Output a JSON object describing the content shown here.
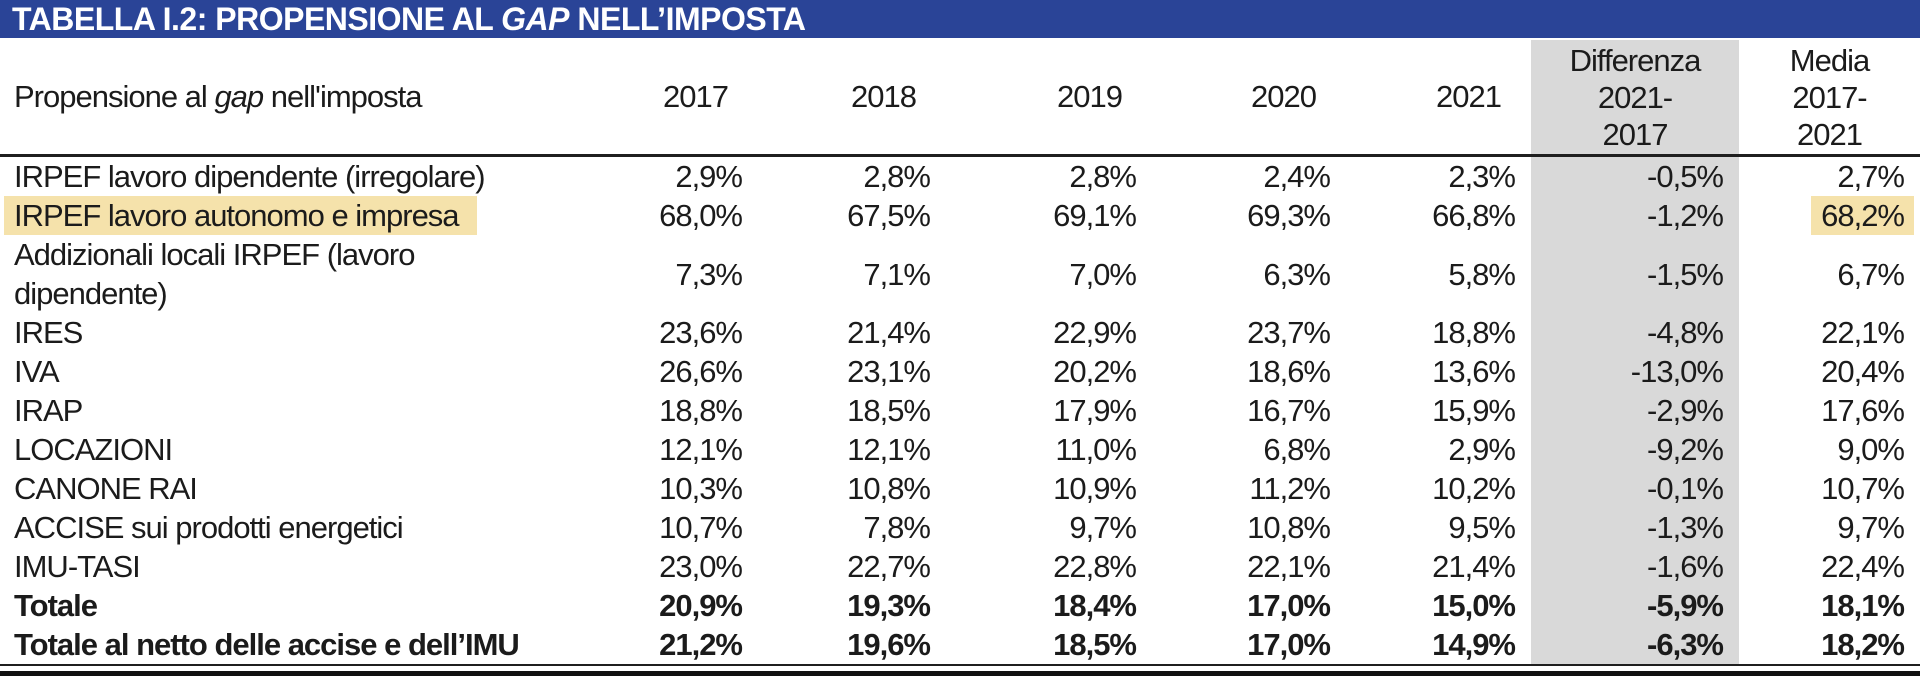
{
  "title": {
    "prefix": "TABELLA I.2: PROPENSIONE AL ",
    "italic": "GAP",
    "suffix": " NELL’IMPOSTA"
  },
  "table": {
    "header": {
      "label": {
        "prefix": "Propensione al ",
        "italic": "gap",
        "suffix": " nell'imposta"
      },
      "years": [
        "2017",
        "2018",
        "2019",
        "2020",
        "2021"
      ],
      "diff_lines": [
        "Differenza",
        "2021-",
        "2017"
      ],
      "media_lines": [
        "Media",
        "2017-",
        "2021"
      ]
    },
    "value_keys": [
      "2017",
      "2018",
      "2019",
      "2020",
      "2021",
      "diff-2021-2017",
      "media-2017-2021"
    ],
    "rows": [
      {
        "label": "IRPEF lavoro dipendente (irregolare)",
        "values": [
          "2,9%",
          "2,8%",
          "2,8%",
          "2,4%",
          "2,3%",
          "-0,5%",
          "2,7%"
        ],
        "bold": false,
        "highlight_label": false,
        "highlight_media": false
      },
      {
        "label": "IRPEF lavoro autonomo e impresa",
        "values": [
          "68,0%",
          "67,5%",
          "69,1%",
          "69,3%",
          "66,8%",
          "-1,2%",
          "68,2%"
        ],
        "bold": false,
        "highlight_label": true,
        "highlight_media": true
      },
      {
        "label": "Addizionali locali IRPEF (lavoro\ndipendente)",
        "values": [
          "7,3%",
          "7,1%",
          "7,0%",
          "6,3%",
          "5,8%",
          "-1,5%",
          "6,7%"
        ],
        "bold": false,
        "highlight_label": false,
        "highlight_media": false
      },
      {
        "label": "IRES",
        "values": [
          "23,6%",
          "21,4%",
          "22,9%",
          "23,7%",
          "18,8%",
          "-4,8%",
          "22,1%"
        ],
        "bold": false,
        "highlight_label": false,
        "highlight_media": false
      },
      {
        "label": "IVA",
        "values": [
          "26,6%",
          "23,1%",
          "20,2%",
          "18,6%",
          "13,6%",
          "-13,0%",
          "20,4%"
        ],
        "bold": false,
        "highlight_label": false,
        "highlight_media": false
      },
      {
        "label": "IRAP",
        "values": [
          "18,8%",
          "18,5%",
          "17,9%",
          "16,7%",
          "15,9%",
          "-2,9%",
          "17,6%"
        ],
        "bold": false,
        "highlight_label": false,
        "highlight_media": false
      },
      {
        "label": "LOCAZIONI",
        "values": [
          "12,1%",
          "12,1%",
          "11,0%",
          "6,8%",
          "2,9%",
          "-9,2%",
          "9,0%"
        ],
        "bold": false,
        "highlight_label": false,
        "highlight_media": false
      },
      {
        "label": "CANONE RAI",
        "values": [
          "10,3%",
          "10,8%",
          "10,9%",
          "11,2%",
          "10,2%",
          "-0,1%",
          "10,7%"
        ],
        "bold": false,
        "highlight_label": false,
        "highlight_media": false
      },
      {
        "label": "ACCISE sui prodotti energetici",
        "values": [
          "10,7%",
          "7,8%",
          "9,7%",
          "10,8%",
          "9,5%",
          "-1,3%",
          "9,7%"
        ],
        "bold": false,
        "highlight_label": false,
        "highlight_media": false
      },
      {
        "label": "IMU-TASI",
        "values": [
          "23,0%",
          "22,7%",
          "22,8%",
          "22,1%",
          "21,4%",
          "-1,6%",
          "22,4%"
        ],
        "bold": false,
        "highlight_label": false,
        "highlight_media": false
      },
      {
        "label": "Totale",
        "values": [
          "20,9%",
          "19,3%",
          "18,4%",
          "17,0%",
          "15,0%",
          "-5,9%",
          "18,1%"
        ],
        "bold": true,
        "highlight_label": false,
        "highlight_media": false
      },
      {
        "label": "Totale al netto delle accise e dell’IMU",
        "values": [
          "21,2%",
          "19,6%",
          "18,5%",
          "17,0%",
          "14,9%",
          "-6,3%",
          "18,2%"
        ],
        "bold": true,
        "highlight_label": false,
        "highlight_media": false
      }
    ]
  },
  "colors": {
    "title_bar": "#2a4497",
    "diff_column": "#d9d9d9",
    "highlight": "#f5e2ab",
    "text": "#1b1b1b"
  }
}
